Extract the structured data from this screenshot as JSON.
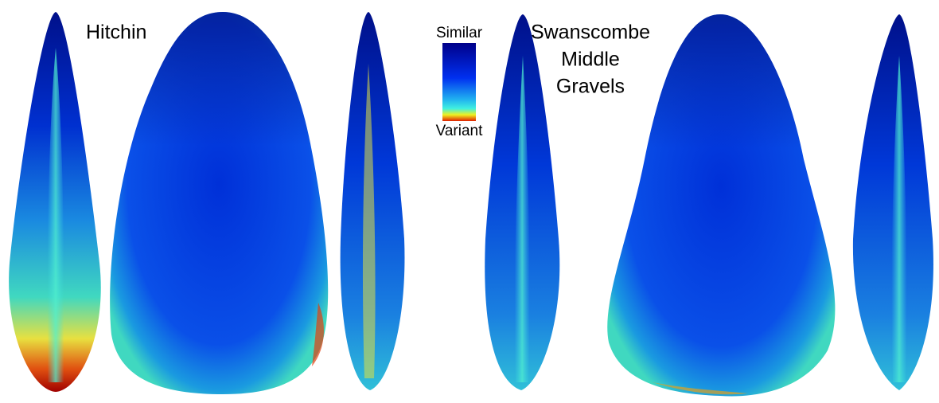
{
  "labels": {
    "left": "Hitchin",
    "right": [
      "Swanscombe",
      "Middle",
      "Gravels"
    ]
  },
  "colorbar": {
    "top": "Similar",
    "bottom": "Variant"
  }
}
